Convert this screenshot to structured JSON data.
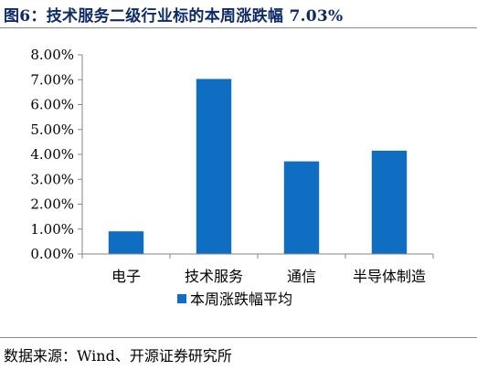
{
  "figure": {
    "title": "图6：技术服务二级行业标的本周涨跌幅 7.03%",
    "source": "数据来源：Wind、开源证券研究所"
  },
  "chart_data": {
    "type": "bar",
    "categories": [
      "电子",
      "技术服务",
      "通信",
      "半导体制造"
    ],
    "series": [
      {
        "name": "本周涨跌幅平均",
        "values": [
          0.91,
          7.03,
          3.72,
          4.15
        ],
        "color": "#0f6ec2"
      }
    ],
    "ylim": [
      0,
      8
    ],
    "yticks": [
      0,
      1,
      2,
      3,
      4,
      5,
      6,
      7,
      8
    ],
    "ytick_labels": [
      "0.00%",
      "1.00%",
      "2.00%",
      "3.00%",
      "4.00%",
      "5.00%",
      "6.00%",
      "7.00%",
      "8.00%"
    ],
    "grid": false,
    "legend": "bottom-center",
    "xlabel": "",
    "ylabel": ""
  }
}
